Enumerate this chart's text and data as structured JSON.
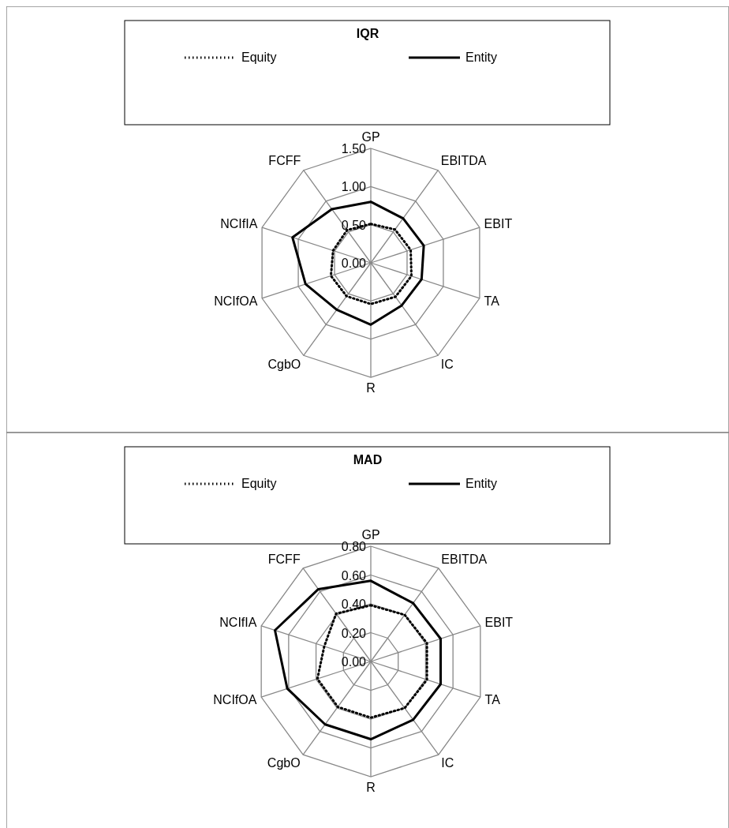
{
  "chart_data": [
    {
      "type": "radar",
      "title": "IQR",
      "categories": [
        "GP",
        "EBITDA",
        "EBIT",
        "TA",
        "IC",
        "R",
        "CgbO",
        "NCIfOA",
        "NCIfIA",
        "FCFF"
      ],
      "ylim": [
        0,
        1.5
      ],
      "yticks": [
        {
          "value": 0,
          "label": "0.00"
        },
        {
          "value": 0.5,
          "label": "0.50"
        },
        {
          "value": 1,
          "label": "1.00"
        },
        {
          "value": 1.5,
          "label": "1.50"
        }
      ],
      "grid": true,
      "legend": "top",
      "marker": "none",
      "series": [
        {
          "name": "Equity",
          "color": "#000000",
          "line_style": "dotted",
          "values": [
            0.51,
            0.54,
            0.55,
            0.56,
            0.55,
            0.54,
            0.54,
            0.55,
            0.52,
            0.53
          ]
        },
        {
          "name": "Entity",
          "color": "#000000",
          "line_style": "solid",
          "values": [
            0.8,
            0.72,
            0.73,
            0.7,
            0.69,
            0.81,
            0.76,
            0.9,
            1.08,
            0.87
          ]
        }
      ]
    },
    {
      "type": "radar",
      "title": "MAD",
      "categories": [
        "GP",
        "EBITDA",
        "EBIT",
        "TA",
        "IC",
        "R",
        "CgbO",
        "NCIfOA",
        "NCIfIA",
        "FCFF"
      ],
      "ylim": [
        0,
        0.8
      ],
      "yticks": [
        {
          "value": 0,
          "label": "0.00"
        },
        {
          "value": 0.2,
          "label": "0.20"
        },
        {
          "value": 0.4,
          "label": "0.40"
        },
        {
          "value": 0.6,
          "label": "0.60"
        },
        {
          "value": 0.8,
          "label": "0.80"
        }
      ],
      "grid": true,
      "legend": "top",
      "marker": "none",
      "series": [
        {
          "name": "Equity",
          "color": "#000000",
          "line_style": "dotted",
          "values": [
            0.39,
            0.4,
            0.41,
            0.41,
            0.4,
            0.39,
            0.39,
            0.39,
            0.34,
            0.41
          ]
        },
        {
          "name": "Entity",
          "color": "#000000",
          "line_style": "solid",
          "values": [
            0.56,
            0.5,
            0.51,
            0.51,
            0.5,
            0.54,
            0.54,
            0.61,
            0.7,
            0.62
          ]
        }
      ]
    }
  ]
}
